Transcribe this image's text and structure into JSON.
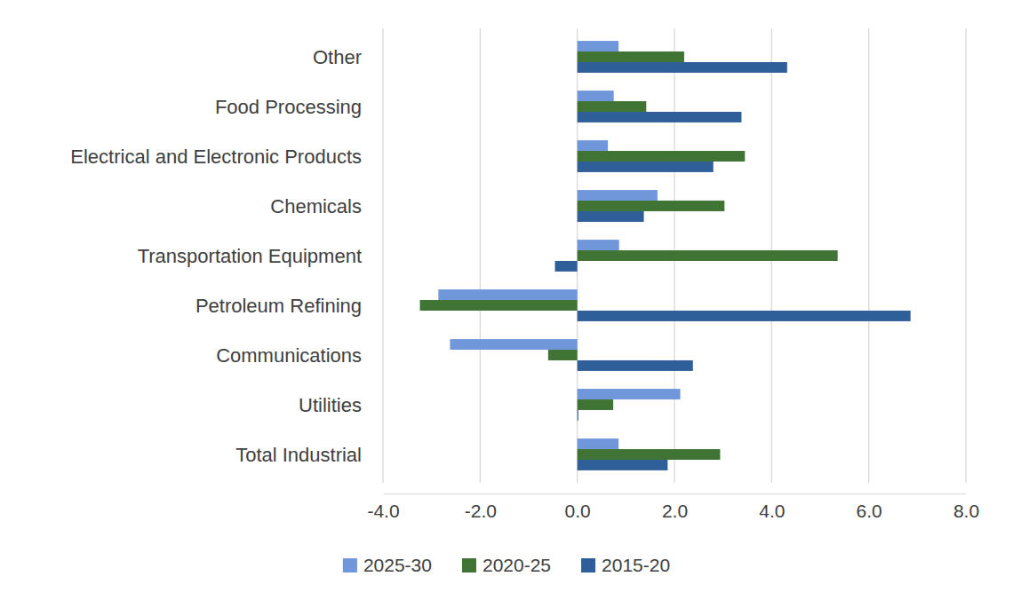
{
  "chart_data": {
    "type": "bar",
    "orientation": "horizontal",
    "categories": [
      "Other",
      "Food Processing",
      "Electrical and Electronic Products",
      "Chemicals",
      "Transportation Equipment",
      "Petroleum Refining",
      "Communications",
      "Utilities",
      "Total Industrial"
    ],
    "series": [
      {
        "name": "2025-30",
        "color": "#6f97da",
        "values": [
          0.85,
          0.75,
          0.63,
          1.65,
          0.86,
          -2.86,
          -2.62,
          2.12,
          0.85
        ]
      },
      {
        "name": "2020-25",
        "color": "#3f7434",
        "values": [
          2.2,
          1.42,
          3.45,
          3.03,
          5.36,
          -3.24,
          -0.6,
          0.74,
          2.94
        ]
      },
      {
        "name": "2015-20",
        "color": "#2f5f98",
        "values": [
          4.32,
          3.38,
          2.8,
          1.37,
          -0.46,
          6.86,
          2.38,
          0.02,
          1.86
        ]
      }
    ],
    "xlim": [
      -4,
      8
    ],
    "xticks": [
      {
        "value": -4,
        "label": "-4.0"
      },
      {
        "value": -2,
        "label": "-2.0"
      },
      {
        "value": 0,
        "label": "0.0"
      },
      {
        "value": 2,
        "label": "2.0"
      },
      {
        "value": 4,
        "label": "4.0"
      },
      {
        "value": 6,
        "label": "6.0"
      },
      {
        "value": 8,
        "label": "8.0"
      }
    ],
    "grid": true,
    "legend": "bottom"
  }
}
